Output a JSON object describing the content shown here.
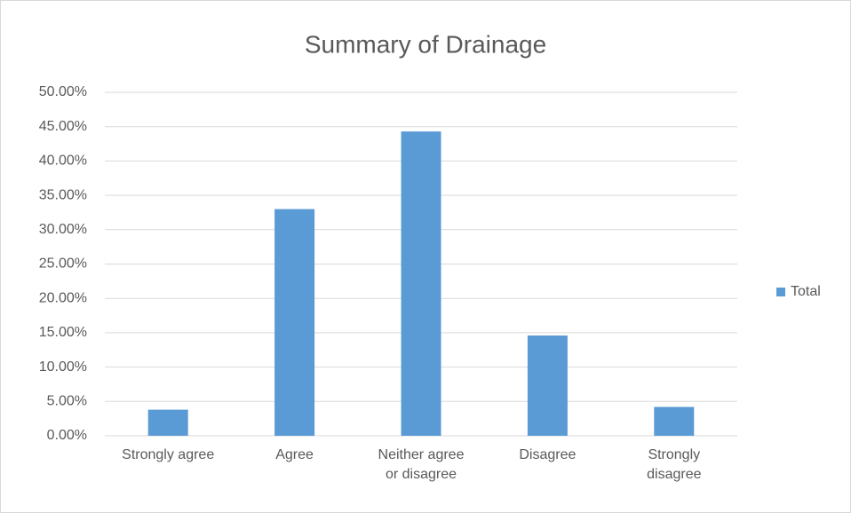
{
  "chart_data": {
    "type": "bar",
    "title": "Summary of Drainage",
    "categories": [
      "Strongly agree",
      "Agree",
      "Neither agree or disagree",
      "Disagree",
      "Strongly disagree"
    ],
    "series": [
      {
        "name": "Total",
        "color": "#5b9bd5",
        "values": [
          3.8,
          33,
          44.3,
          14.6,
          4.2
        ]
      }
    ],
    "ylim": [
      0,
      50
    ],
    "yticks": [
      {
        "value": 0,
        "label": "0.00%"
      },
      {
        "value": 5,
        "label": "5.00%"
      },
      {
        "value": 10,
        "label": "10.00%"
      },
      {
        "value": 15,
        "label": "15.00%"
      },
      {
        "value": 20,
        "label": "20.00%"
      },
      {
        "value": 25,
        "label": "25.00%"
      },
      {
        "value": 30,
        "label": "30.00%"
      },
      {
        "value": 35,
        "label": "35.00%"
      },
      {
        "value": 40,
        "label": "40.00%"
      },
      {
        "value": 45,
        "label": "45.00%"
      },
      {
        "value": 50,
        "label": "50.00%"
      }
    ],
    "grid": true,
    "legend": "right"
  }
}
